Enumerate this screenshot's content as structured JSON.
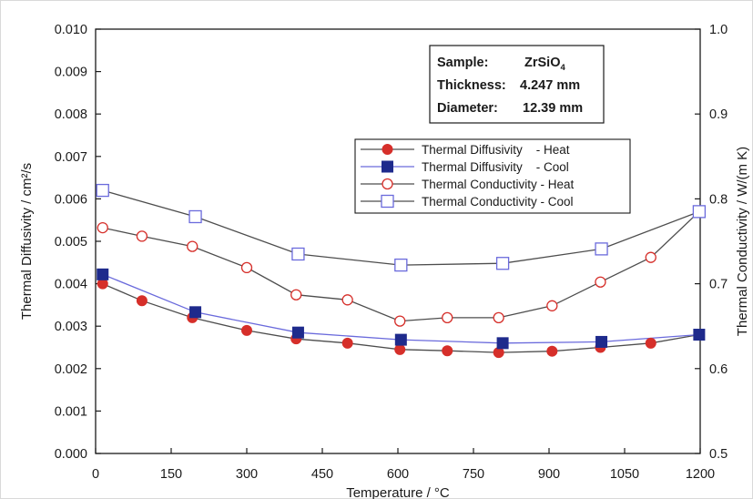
{
  "chart_data": {
    "type": "line",
    "xlabel": "Temperature / °C",
    "ylabel_left": "Thermal Diffusivity / cm²/s",
    "ylabel_right": "Thermal Conductivity / W/(m K)",
    "xlim": [
      0,
      1200
    ],
    "ylim_left": [
      0,
      0.01
    ],
    "ylim_right": [
      0.5,
      1.0
    ],
    "x_ticks": [
      "0",
      "150",
      "300",
      "450",
      "600",
      "750",
      "900",
      "1050",
      "1200"
    ],
    "y_left_ticks": [
      "0.000",
      "0.001",
      "0.002",
      "0.003",
      "0.004",
      "0.005",
      "0.006",
      "0.007",
      "0.008",
      "0.009",
      "0.010"
    ],
    "y_right_ticks": [
      "0.5",
      "0.6",
      "0.7",
      "0.8",
      "0.9",
      "1.0"
    ],
    "grid": false,
    "annotation": {
      "sample_label": "Sample:",
      "sample_value": "ZrSiO",
      "sample_subscript": "4",
      "thickness_label": "Thickness:",
      "thickness_value": "4.247 mm",
      "diameter_label": "Diameter:",
      "diameter_value": "12.39 mm"
    },
    "legend_position": "upper-right",
    "series": [
      {
        "name": "Thermal Diffusivity    - Heat",
        "axis": "left",
        "marker": "circle-filled",
        "color": "#d62f2a",
        "line_color": "#4d4d4d",
        "x": [
          14,
          92,
          192,
          300,
          398,
          500,
          604,
          698,
          800,
          906,
          1002,
          1102,
          1198
        ],
        "y": [
          0.004,
          0.0036,
          0.0032,
          0.0029,
          0.0027,
          0.0026,
          0.00245,
          0.00242,
          0.00238,
          0.00241,
          0.0025,
          0.0026,
          0.0028
        ]
      },
      {
        "name": "Thermal Diffusivity    - Cool",
        "axis": "left",
        "marker": "square-filled",
        "color": "#1e2a8c",
        "line_color": "#6a6adc",
        "x": [
          14,
          198,
          402,
          606,
          808,
          1004,
          1198
        ],
        "y": [
          0.00422,
          0.00333,
          0.00285,
          0.00268,
          0.0026,
          0.00263,
          0.0028
        ]
      },
      {
        "name": "Thermal Conductivity - Heat",
        "axis": "right",
        "marker": "circle-open",
        "color": "#d62f2a",
        "line_color": "#4d4d4d",
        "x": [
          14,
          92,
          192,
          300,
          398,
          500,
          604,
          698,
          800,
          906,
          1002,
          1102,
          1198
        ],
        "y": [
          0.766,
          0.756,
          0.744,
          0.719,
          0.687,
          0.681,
          0.656,
          0.66,
          0.66,
          0.674,
          0.702,
          0.731,
          0.785
        ]
      },
      {
        "name": "Thermal Conductivity - Cool",
        "axis": "right",
        "marker": "square-open",
        "color": "#6a6adc",
        "line_color": "#4d4d4d",
        "x": [
          14,
          198,
          402,
          606,
          808,
          1004,
          1198
        ],
        "y": [
          0.81,
          0.779,
          0.735,
          0.722,
          0.724,
          0.741,
          0.785
        ]
      }
    ]
  }
}
